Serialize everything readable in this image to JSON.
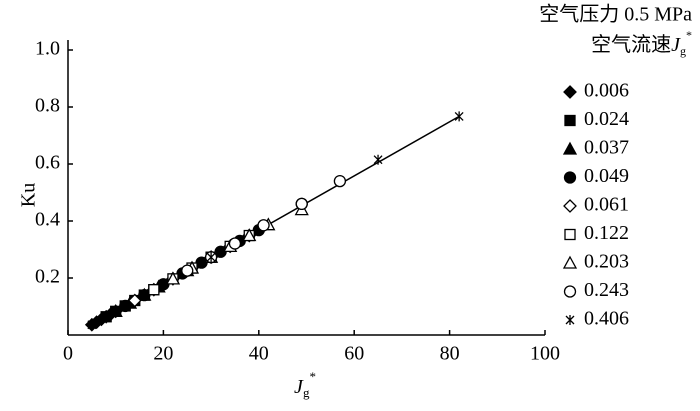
{
  "chart_data": {
    "type": "scatter",
    "y_label": "Ku",
    "x_label": {
      "base": "J",
      "sub": "g",
      "sup": "*"
    },
    "legend_title": [
      "空气压力 0.5 MPa",
      {
        "prefix": "空气流速",
        "base": "J",
        "sub": "g",
        "sup": "*"
      }
    ],
    "xlim": [
      0,
      100
    ],
    "xticks": [
      0,
      20,
      40,
      60,
      80,
      100
    ],
    "ylim": [
      0,
      1
    ],
    "yticks": [
      0.2,
      0.4,
      0.6,
      0.8,
      {
        "value": 1,
        "label": "1.0"
      }
    ],
    "fit": {
      "x": [
        5,
        82
      ],
      "y": [
        0.036,
        0.767
      ]
    },
    "series": [
      {
        "name": "0.006",
        "marker": "diamond",
        "filled": true,
        "color": "#000000",
        "x": [
          5,
          6,
          7,
          8,
          9,
          10
        ],
        "y": [
          0.036,
          0.045,
          0.055,
          0.064,
          0.074,
          0.083
        ]
      },
      {
        "name": "0.024",
        "marker": "square",
        "filled": true,
        "color": "#000000",
        "x": [
          8,
          10,
          12,
          14,
          16,
          18
        ],
        "y": [
          0.064,
          0.083,
          0.102,
          0.121,
          0.14,
          0.159
        ]
      },
      {
        "name": "0.037",
        "marker": "triangle",
        "filled": true,
        "color": "#000000",
        "x": [
          10,
          13,
          16,
          19,
          22,
          25
        ],
        "y": [
          0.083,
          0.112,
          0.14,
          0.169,
          0.197,
          0.226
        ]
      },
      {
        "name": "0.049",
        "marker": "circle",
        "filled": true,
        "color": "#000000",
        "x": [
          12,
          16,
          20,
          24,
          28,
          32,
          36,
          40,
          49
        ],
        "y": [
          0.102,
          0.14,
          0.178,
          0.216,
          0.254,
          0.292,
          0.33,
          0.368,
          0.46
        ]
      },
      {
        "name": "0.061",
        "marker": "diamond",
        "filled": false,
        "color": "#000000",
        "x": [
          14,
          18,
          22,
          26,
          30,
          34,
          38
        ],
        "y": [
          0.121,
          0.159,
          0.197,
          0.235,
          0.273,
          0.311,
          0.349
        ]
      },
      {
        "name": "0.122",
        "marker": "square",
        "filled": false,
        "color": "#000000",
        "x": [
          18,
          22,
          26,
          30,
          34,
          38
        ],
        "y": [
          0.159,
          0.197,
          0.235,
          0.273,
          0.311,
          0.349
        ]
      },
      {
        "name": "0.203",
        "marker": "triangle",
        "filled": false,
        "color": "#000000",
        "x": [
          22,
          26,
          30,
          34,
          38,
          42,
          49
        ],
        "y": [
          0.197,
          0.235,
          0.273,
          0.311,
          0.349,
          0.387,
          0.44
        ]
      },
      {
        "name": "0.243",
        "marker": "circle",
        "filled": false,
        "color": "#000000",
        "x": [
          25,
          30,
          35,
          41,
          49,
          57
        ],
        "y": [
          0.226,
          0.273,
          0.321,
          0.385,
          0.46,
          0.54
        ]
      },
      {
        "name": "0.406",
        "marker": "cross",
        "filled": false,
        "color": "#000000",
        "x": [
          5,
          12,
          20,
          30,
          65,
          82
        ],
        "y": [
          0.036,
          0.102,
          0.178,
          0.273,
          0.615,
          0.767
        ]
      }
    ]
  }
}
